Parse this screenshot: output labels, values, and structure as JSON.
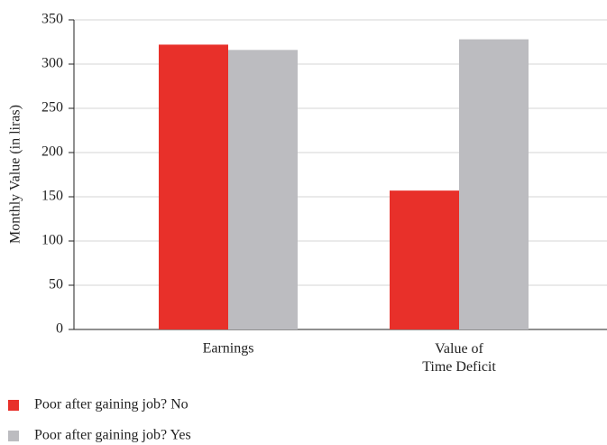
{
  "chart_data": {
    "type": "bar",
    "y_label": "Monthly Value (in liras)",
    "categories": [
      "Earnings",
      "Value of\nTime Deficit"
    ],
    "series": [
      {
        "name": "Poor after gaining job? No",
        "color": "#e8302a",
        "values": [
          322,
          157
        ]
      },
      {
        "name": "Poor after gaining job? Yes",
        "color": "#bcbcc0",
        "values": [
          316,
          328
        ]
      }
    ],
    "ylim": [
      0,
      350
    ],
    "yticks": [
      0,
      50,
      100,
      150,
      200,
      250,
      300,
      350
    ],
    "grid": true
  }
}
